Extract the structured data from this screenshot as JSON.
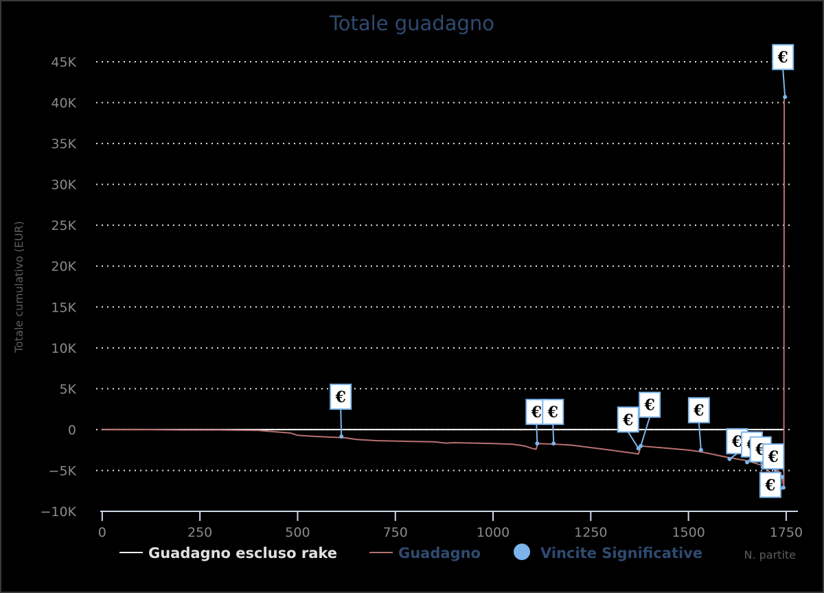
{
  "chart_data": {
    "type": "line",
    "title": "Totale guadagno",
    "xlabel": "N. partite",
    "ylabel": "Totale cumulativo (EUR)",
    "xlim": [
      -5,
      1780
    ],
    "ylim": [
      -10000,
      45000
    ],
    "x_ticks": [
      0,
      250,
      500,
      750,
      1000,
      1250,
      1500,
      1750
    ],
    "x_tick_labels": [
      "0",
      "250",
      "500",
      "750",
      "1000",
      "1250",
      "1500",
      "1750"
    ],
    "y_ticks": [
      -10000,
      -5000,
      0,
      5000,
      10000,
      15000,
      20000,
      25000,
      30000,
      35000,
      40000,
      45000
    ],
    "y_tick_labels": [
      "−10K",
      "−5K",
      "0",
      "5K",
      "10K",
      "15K",
      "20K",
      "25K",
      "30K",
      "35K",
      "40K",
      "45K"
    ],
    "grid": true,
    "legend_position": "bottom",
    "series": [
      {
        "name": "Guadagno escluso rake",
        "color": "#ffffff",
        "x": [
          0,
          1744
        ],
        "y": [
          0,
          0
        ]
      },
      {
        "name": "Guadagno",
        "color": "#b87070",
        "x": [
          0,
          100,
          200,
          300,
          350,
          400,
          450,
          480,
          500,
          550,
          600,
          620,
          650,
          700,
          750,
          800,
          850,
          880,
          900,
          950,
          1000,
          1050,
          1080,
          1100,
          1110,
          1115,
          1160,
          1200,
          1250,
          1300,
          1330,
          1360,
          1372,
          1378,
          1400,
          1450,
          1500,
          1530,
          1560,
          1600,
          1650,
          1690,
          1715,
          1725,
          1735,
          1740,
          1744,
          1745,
          1746,
          1747
        ],
        "y": [
          0,
          0,
          -50,
          -50,
          -80,
          -100,
          -300,
          -400,
          -700,
          -850,
          -950,
          -1000,
          -1200,
          -1350,
          -1400,
          -1450,
          -1500,
          -1650,
          -1600,
          -1650,
          -1700,
          -1800,
          -2000,
          -2300,
          -2400,
          -1700,
          -1800,
          -1900,
          -2200,
          -2500,
          -2700,
          -2900,
          -3000,
          -2000,
          -2100,
          -2300,
          -2500,
          -2700,
          -3000,
          -3400,
          -3800,
          -4400,
          -5500,
          -4800,
          -5400,
          -6000,
          -7000,
          40700,
          40700,
          40700
        ]
      },
      {
        "name": "Vincite Significative",
        "color": "#7cb5ec",
        "type": "flags",
        "points": [
          {
            "x": 612,
            "y": -850,
            "label": "€"
          },
          {
            "x": 1113,
            "y": -1700,
            "label": "€"
          },
          {
            "x": 1155,
            "y": -1700,
            "label": "€"
          },
          {
            "x": 1372,
            "y": -2300,
            "label": "€"
          },
          {
            "x": 1378,
            "y": -2000,
            "label": "€"
          },
          {
            "x": 1532,
            "y": -2500,
            "label": "€"
          },
          {
            "x": 1605,
            "y": -3600,
            "label": "€"
          },
          {
            "x": 1650,
            "y": -4000,
            "label": "€"
          },
          {
            "x": 1690,
            "y": -4600,
            "label": "€"
          },
          {
            "x": 1740,
            "y": -5800,
            "label": "€"
          },
          {
            "x": 1743,
            "y": -7100,
            "label": "€"
          },
          {
            "x": 1747,
            "y": 40700,
            "label": "€"
          }
        ]
      }
    ]
  }
}
